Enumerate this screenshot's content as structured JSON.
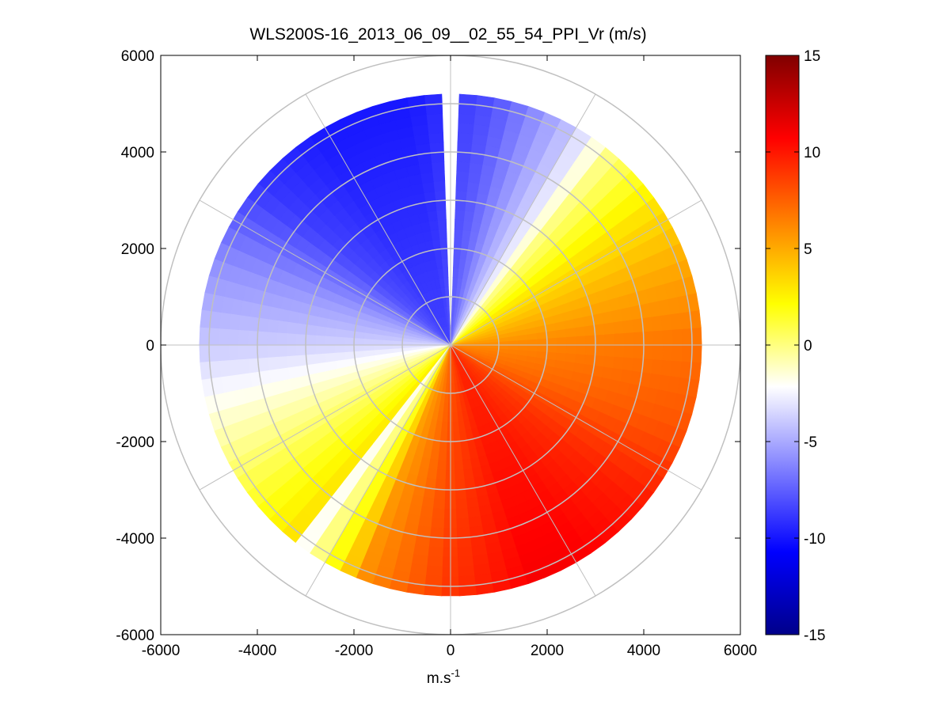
{
  "chart_data": {
    "type": "heatmap",
    "subtype": "polar-ppi",
    "title": "WLS200S-16_2013_06_09__02_55_54_PPI_Vr (m/s)",
    "xlabel_base": "m.s",
    "xlabel_sup": "-1",
    "ylabel": "",
    "xlim": [
      -6000,
      6000
    ],
    "ylim": [
      -6000,
      6000
    ],
    "xticks": [
      -6000,
      -4000,
      -2000,
      0,
      2000,
      4000,
      6000
    ],
    "yticks": [
      6000,
      4000,
      2000,
      0,
      -2000,
      -4000,
      -6000
    ],
    "xtick_labels": [
      "-6000",
      "-4000",
      "-2000",
      "0",
      "2000",
      "4000",
      "6000"
    ],
    "ytick_labels": [
      "6000",
      "4000",
      "2000",
      "0",
      "-2000",
      "-4000",
      "-6000"
    ],
    "range_rings_m": [
      1000,
      2000,
      3000,
      4000,
      5000,
      6000
    ],
    "spoke_angles_deg": [
      0,
      30,
      60,
      90,
      120,
      150,
      180,
      210,
      240,
      270,
      300,
      330
    ],
    "max_range_m": 5200,
    "gap_sector_deg": {
      "center": 90,
      "half_width": 3
    },
    "radial_velocity_profile": {
      "azimuth_deg": [
        -60,
        -40,
        -20,
        0,
        20,
        35,
        50,
        60,
        80,
        100,
        120,
        140,
        160,
        180,
        200,
        215,
        230,
        232,
        250,
        270,
        290
      ],
      "velocity_ms": [
        11,
        10,
        8,
        7,
        5,
        3,
        0,
        -4,
        -8,
        -10,
        -10,
        -9,
        -6,
        -4,
        -1,
        1,
        3,
        -3,
        6,
        9,
        11
      ]
    },
    "colorbar": {
      "min": -15,
      "max": 15,
      "ticks": [
        15,
        10,
        5,
        0,
        -5,
        -10,
        -15
      ],
      "tick_labels": [
        "15",
        "10",
        "5",
        "0",
        "-5",
        "-10",
        "-15"
      ],
      "colors_low_to_high": [
        "#00008a",
        "#0000ff",
        "#7f7fff",
        "#ffffff",
        "#ffff00",
        "#ff8000",
        "#ff0000",
        "#800000"
      ]
    }
  }
}
